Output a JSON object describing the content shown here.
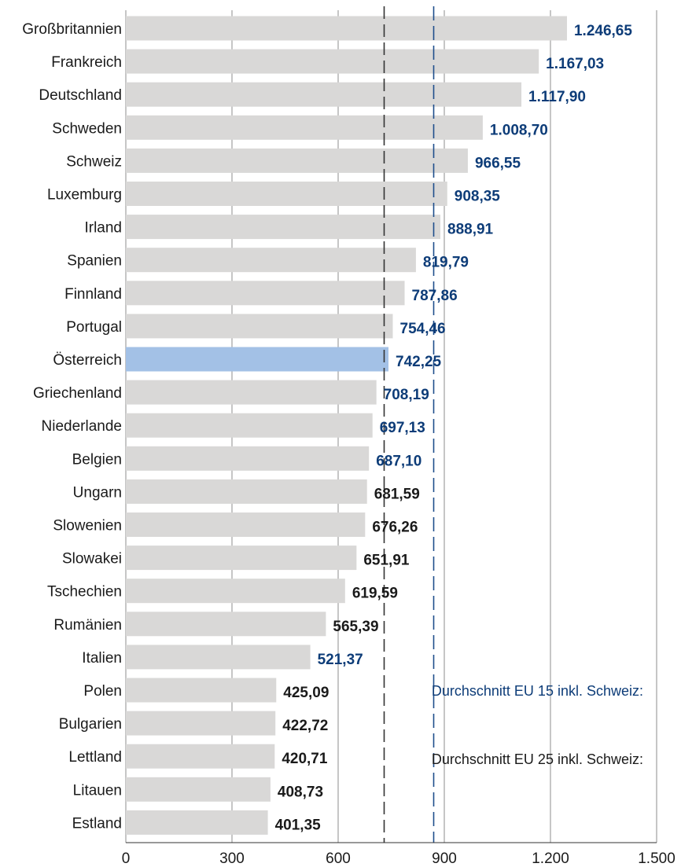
{
  "chart_data": {
    "type": "bar",
    "orientation": "horizontal",
    "categories": [
      "Großbritannien",
      "Frankreich",
      "Deutschland",
      "Schweden",
      "Schweiz",
      "Luxemburg",
      "Irland",
      "Spanien",
      "Finnland",
      "Portugal",
      "Österreich",
      "Griechenland",
      "Niederlande",
      "Belgien",
      "Ungarn",
      "Slowenien",
      "Slowakei",
      "Tschechien",
      "Rumänien",
      "Italien",
      "Polen",
      "Bulgarien",
      "Lettland",
      "Litauen",
      "Estland"
    ],
    "values": [
      1246.65,
      1167.03,
      1117.9,
      1008.7,
      966.55,
      908.35,
      888.91,
      819.79,
      787.86,
      754.46,
      742.25,
      708.19,
      697.13,
      687.1,
      681.59,
      676.26,
      651.91,
      619.59,
      565.39,
      521.37,
      425.09,
      422.72,
      420.71,
      408.73,
      401.35
    ],
    "value_labels": [
      "1.246,65",
      "1.167,03",
      "1.117,90",
      "1.008,70",
      "966,55",
      "908,35",
      "888,91",
      "819,79",
      "787,86",
      "754,46",
      "742,25",
      "708,19",
      "697,13",
      "687,10",
      "681,59",
      "676,26",
      "651,91",
      "619,59",
      "565,39",
      "521,37",
      "425,09",
      "422,72",
      "420,71",
      "408,73",
      "401,35"
    ],
    "eu15_members": [
      "Großbritannien",
      "Frankreich",
      "Deutschland",
      "Schweden",
      "Schweiz",
      "Luxemburg",
      "Irland",
      "Spanien",
      "Finnland",
      "Portugal",
      "Österreich",
      "Griechenland",
      "Niederlande",
      "Belgien",
      "Italien"
    ],
    "highlight": "Österreich",
    "xlim": [
      0,
      1500
    ],
    "xticks": [
      0,
      300,
      600,
      900,
      1200,
      1500
    ],
    "xtick_labels": [
      "0",
      "300",
      "600",
      "900",
      "1.200",
      "1.500"
    ],
    "grid": true,
    "reference_lines": [
      {
        "label": "Durchschnitt EU 15 inkl. Schweiz:",
        "value": 870,
        "style": "dashed",
        "color": "#1f4e8c"
      },
      {
        "label": "Durchschnitt EU 25 inkl. Schweiz:",
        "value": 730,
        "style": "dashed",
        "color": "#333333"
      }
    ],
    "colors": {
      "bar": "#d9d8d7",
      "highlight_bar": "#a3c1e6",
      "eu15_label": "#0d3c78",
      "other_label": "#1a1a1a",
      "gridline": "#8c8c8c"
    }
  }
}
